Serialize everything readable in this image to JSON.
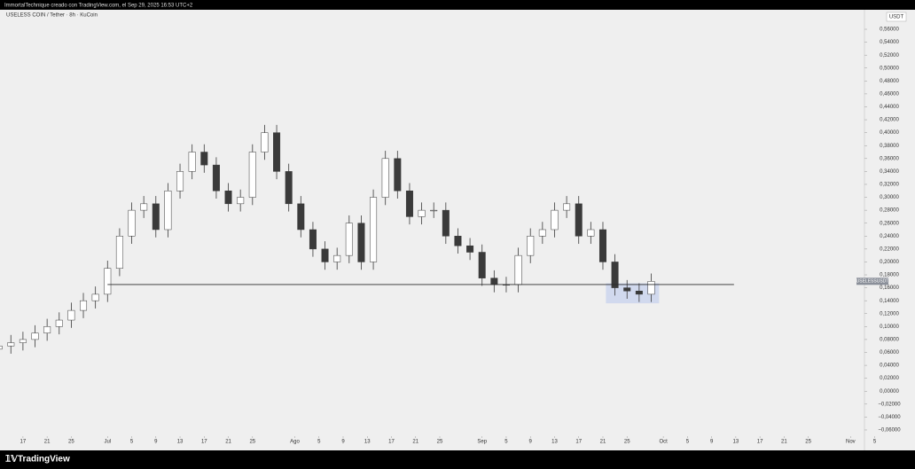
{
  "header": "ImmortalTechnique creado con TradingView.com, el Sep 29, 2025 16:53 UTC+2",
  "footer_logo": "TradingView",
  "chart_data": {
    "type": "candlestick",
    "title": "USELESS COIN / Tether · 8h · KuCoin",
    "currency_label": "USDT",
    "price_label": "USELESSUSDT",
    "x": [
      -18,
      -16,
      -14,
      -12,
      -10,
      -8,
      -6,
      -4,
      -2,
      0,
      2,
      4,
      6,
      8,
      10,
      12,
      14,
      16,
      18,
      20,
      22,
      24,
      26,
      28,
      30,
      32,
      34,
      36,
      38,
      40,
      42,
      44,
      46,
      48,
      50,
      52,
      54,
      56,
      58,
      60,
      62,
      64,
      66,
      68,
      70,
      72,
      74,
      76,
      78,
      80,
      82,
      84,
      86,
      88,
      90
    ],
    "open": [
      0.065,
      0.07,
      0.075,
      0.08,
      0.09,
      0.1,
      0.11,
      0.125,
      0.14,
      0.15,
      0.19,
      0.24,
      0.28,
      0.29,
      0.25,
      0.31,
      0.34,
      0.37,
      0.35,
      0.31,
      0.29,
      0.3,
      0.37,
      0.4,
      0.34,
      0.29,
      0.25,
      0.22,
      0.2,
      0.21,
      0.26,
      0.2,
      0.3,
      0.36,
      0.31,
      0.27,
      0.28,
      0.28,
      0.24,
      0.225,
      0.215,
      0.175,
      0.165,
      0.165,
      0.21,
      0.24,
      0.25,
      0.28,
      0.29,
      0.24,
      0.25,
      0.2,
      0.16,
      0.155,
      0.15
    ],
    "high": [
      0.082,
      0.087,
      0.092,
      0.102,
      0.112,
      0.122,
      0.137,
      0.152,
      0.162,
      0.202,
      0.252,
      0.292,
      0.302,
      0.302,
      0.322,
      0.352,
      0.382,
      0.382,
      0.362,
      0.322,
      0.312,
      0.382,
      0.412,
      0.412,
      0.352,
      0.302,
      0.262,
      0.232,
      0.222,
      0.272,
      0.272,
      0.312,
      0.372,
      0.372,
      0.322,
      0.292,
      0.292,
      0.292,
      0.252,
      0.237,
      0.227,
      0.187,
      0.177,
      0.222,
      0.252,
      0.262,
      0.292,
      0.302,
      0.302,
      0.262,
      0.262,
      0.212,
      0.172,
      0.167,
      0.182
    ],
    "low": [
      0.053,
      0.058,
      0.063,
      0.068,
      0.078,
      0.088,
      0.098,
      0.113,
      0.128,
      0.138,
      0.178,
      0.228,
      0.268,
      0.238,
      0.238,
      0.298,
      0.328,
      0.338,
      0.298,
      0.278,
      0.278,
      0.288,
      0.358,
      0.328,
      0.278,
      0.238,
      0.208,
      0.188,
      0.188,
      0.198,
      0.188,
      0.188,
      0.288,
      0.298,
      0.258,
      0.258,
      0.268,
      0.228,
      0.213,
      0.203,
      0.163,
      0.153,
      0.153,
      0.153,
      0.198,
      0.228,
      0.238,
      0.268,
      0.228,
      0.228,
      0.188,
      0.148,
      0.143,
      0.138,
      0.138
    ],
    "close": [
      0.07,
      0.075,
      0.08,
      0.09,
      0.1,
      0.11,
      0.125,
      0.14,
      0.15,
      0.19,
      0.24,
      0.28,
      0.29,
      0.25,
      0.31,
      0.34,
      0.37,
      0.35,
      0.31,
      0.29,
      0.3,
      0.37,
      0.4,
      0.34,
      0.29,
      0.25,
      0.22,
      0.2,
      0.21,
      0.26,
      0.2,
      0.3,
      0.36,
      0.31,
      0.27,
      0.28,
      0.28,
      0.24,
      0.225,
      0.215,
      0.175,
      0.165,
      0.165,
      0.21,
      0.24,
      0.25,
      0.28,
      0.29,
      0.24,
      0.25,
      0.2,
      0.16,
      0.155,
      0.15,
      0.17
    ],
    "up_color": "#ffffff",
    "down_color": "#3a3a3a",
    "wick_color": "#3a3a3a",
    "support_level": {
      "value": 0.165,
      "x": [
        0,
        103.7
      ],
      "color": "#2b2b2b"
    },
    "highlight_box": {
      "x": [
        82.5,
        91.3
      ],
      "y": [
        0.136,
        0.167
      ],
      "color": "#c9d3ee"
    },
    "xlim": [
      -17.8,
      125.3
    ],
    "ylim": [
      -0.0669,
      0.5902
    ],
    "xticks": [
      {
        "value": -14,
        "label": "17"
      },
      {
        "value": -10,
        "label": "21"
      },
      {
        "value": -6,
        "label": "25"
      },
      {
        "value": 0,
        "label": "Jul"
      },
      {
        "value": 4,
        "label": "5"
      },
      {
        "value": 8,
        "label": "9"
      },
      {
        "value": 12,
        "label": "13"
      },
      {
        "value": 16,
        "label": "17"
      },
      {
        "value": 20,
        "label": "21"
      },
      {
        "value": 24,
        "label": "25"
      },
      {
        "value": 31,
        "label": "Ago"
      },
      {
        "value": 35,
        "label": "5"
      },
      {
        "value": 39,
        "label": "9"
      },
      {
        "value": 43,
        "label": "13"
      },
      {
        "value": 47,
        "label": "17"
      },
      {
        "value": 51,
        "label": "21"
      },
      {
        "value": 55,
        "label": "25"
      },
      {
        "value": 62,
        "label": "Sep"
      },
      {
        "value": 66,
        "label": "5"
      },
      {
        "value": 70,
        "label": "9"
      },
      {
        "value": 74,
        "label": "13"
      },
      {
        "value": 78,
        "label": "17"
      },
      {
        "value": 82,
        "label": "21"
      },
      {
        "value": 86,
        "label": "25"
      },
      {
        "value": 92,
        "label": "Oct"
      },
      {
        "value": 96,
        "label": "5"
      },
      {
        "value": 100,
        "label": "9"
      },
      {
        "value": 104,
        "label": "13"
      },
      {
        "value": 108,
        "label": "17"
      },
      {
        "value": 112,
        "label": "21"
      },
      {
        "value": 116,
        "label": "25"
      },
      {
        "value": 123,
        "label": "Nov"
      },
      {
        "value": 127,
        "label": "5"
      }
    ],
    "yticks": [
      {
        "value": 0.56,
        "label": "0,56000"
      },
      {
        "value": 0.54,
        "label": "0,54000"
      },
      {
        "value": 0.52,
        "label": "0,52000"
      },
      {
        "value": 0.5,
        "label": "0,50000"
      },
      {
        "value": 0.48,
        "label": "0,48000"
      },
      {
        "value": 0.46,
        "label": "0,46000"
      },
      {
        "value": 0.44,
        "label": "0,44000"
      },
      {
        "value": 0.42,
        "label": "0,42000"
      },
      {
        "value": 0.4,
        "label": "0,40000"
      },
      {
        "value": 0.38,
        "label": "0,38000"
      },
      {
        "value": 0.36,
        "label": "0,36000"
      },
      {
        "value": 0.34,
        "label": "0,34000"
      },
      {
        "value": 0.32,
        "label": "0,32000"
      },
      {
        "value": 0.3,
        "label": "0,30000"
      },
      {
        "value": 0.28,
        "label": "0,28000"
      },
      {
        "value": 0.26,
        "label": "0,26000"
      },
      {
        "value": 0.24,
        "label": "0,24000"
      },
      {
        "value": 0.22,
        "label": "0,22000"
      },
      {
        "value": 0.2,
        "label": "0,20000"
      },
      {
        "value": 0.18,
        "label": "0,18000"
      },
      {
        "value": 0.16,
        "label": "0,16000"
      },
      {
        "value": 0.14,
        "label": "0,14000"
      },
      {
        "value": 0.12,
        "label": "0,12000"
      },
      {
        "value": 0.1,
        "label": "0,10000"
      },
      {
        "value": 0.08,
        "label": "0,08000"
      },
      {
        "value": 0.06,
        "label": "0,06000"
      },
      {
        "value": 0.04,
        "label": "0,04000"
      },
      {
        "value": 0.02,
        "label": "0,02000"
      },
      {
        "value": 0,
        "label": "0,00000"
      },
      {
        "value": -0.02,
        "label": "−0,02000"
      },
      {
        "value": -0.04,
        "label": "−0,04000"
      },
      {
        "value": -0.06,
        "label": "−0,06000"
      }
    ],
    "grid": false
  }
}
